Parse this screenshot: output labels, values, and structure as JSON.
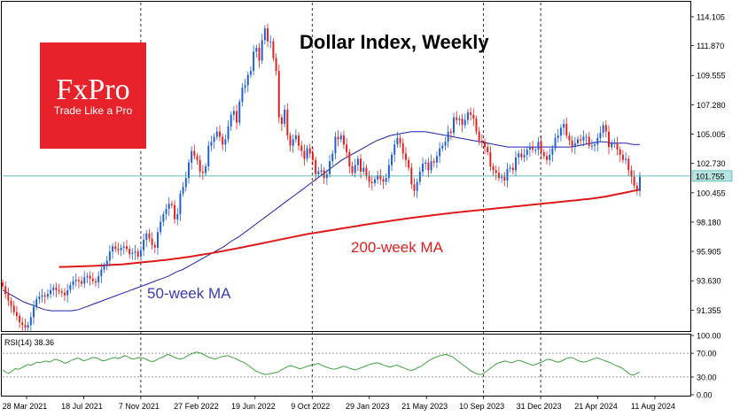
{
  "chart_data": {
    "type": "candlestick",
    "title": "Dollar Index, Weekly",
    "annotations": {
      "ma50": "50-week MA",
      "ma200": "200-week MA"
    },
    "logo": {
      "name": "FxPro",
      "tagline": "Trade Like a Pro"
    },
    "last_price_label": "101.755",
    "last_price": 101.755,
    "y_ticks": [
      "114.105",
      "111.870",
      "109.555",
      "107.280",
      "105.005",
      "102.730",
      "100.455",
      "98.180",
      "95.905",
      "93.630",
      "91.355"
    ],
    "ylim": [
      89.8,
      115.2
    ],
    "x_ticks": [
      "28 Mar 2021",
      "18 Jul 2021",
      "7 Nov 2021",
      "27 Feb 2022",
      "19 Jun 2022",
      "9 Oct 2022",
      "29 Jan 2023",
      "21 May 2023",
      "10 Sep 2023",
      "31 Dec 2023",
      "21 Apr 2024",
      "11 Aug 2024"
    ],
    "vertical_markers": [
      "7 Nov 2021",
      "9 Oct 2022",
      "10 Sep 2023",
      "31 Dec 2023"
    ],
    "close": [
      93.2,
      92.6,
      92.1,
      91.7,
      91.2,
      90.9,
      90.4,
      90.2,
      90.0,
      90.2,
      90.8,
      91.6,
      92.2,
      92.4,
      92.5,
      92.4,
      92.6,
      92.9,
      93.1,
      92.9,
      92.8,
      92.7,
      92.5,
      92.9,
      93.3,
      93.6,
      93.7,
      93.6,
      93.4,
      93.9,
      94.0,
      93.8,
      93.6,
      93.5,
      94.0,
      94.5,
      94.8,
      95.2,
      95.9,
      96.3,
      96.1,
      96.0,
      96.2,
      96.3,
      96.1,
      95.7,
      95.8,
      95.9,
      95.5,
      96.0,
      96.8,
      97.3,
      96.9,
      96.4,
      96.2,
      97.4,
      98.2,
      98.8,
      99.2,
      99.6,
      99.5,
      98.4,
      98.8,
      100.4,
      100.9,
      101.6,
      102.8,
      103.7,
      103.3,
      103.0,
      102.1,
      102.0,
      102.5,
      104.1,
      104.4,
      104.8,
      105.2,
      104.8,
      104.2,
      104.6,
      105.6,
      106.5,
      106.8,
      105.9,
      107.5,
      108.6,
      108.8,
      109.6,
      109.9,
      111.4,
      111.7,
      110.7,
      112.3,
      113.2,
      112.2,
      112.2,
      110.9,
      109.9,
      106.3,
      105.8,
      106.9,
      104.9,
      104.1,
      104.6,
      104.9,
      104.1,
      103.7,
      103.1,
      103.9,
      103.5,
      103.0,
      101.9,
      102.1,
      102.2,
      101.6,
      101.9,
      102.9,
      103.5,
      104.8,
      104.6,
      104.9,
      104.2,
      103.6,
      102.5,
      102.0,
      102.6,
      103.1,
      102.1,
      102.4,
      101.8,
      101.3,
      101.2,
      101.5,
      101.8,
      101.5,
      101.3,
      101.6,
      102.6,
      103.4,
      104.2,
      104.7,
      104.3,
      103.5,
      103.0,
      102.4,
      101.1,
      100.6,
      101.3,
      102.1,
      102.7,
      102.8,
      102.2,
      102.9,
      102.8,
      103.3,
      103.9,
      104.1,
      104.4,
      105.2,
      105.1,
      106.3,
      106.1,
      106.2,
      105.7,
      106.1,
      106.7,
      106.5,
      106.2,
      105.2,
      104.5,
      104.4,
      104.0,
      103.6,
      102.5,
      102.2,
      102.0,
      101.6,
      101.7,
      101.4,
      102.3,
      102.4,
      102.2,
      103.2,
      103.5,
      103.2,
      103.4,
      103.8,
      104.0,
      103.8,
      103.8,
      104.4,
      103.6,
      103.3,
      103.0,
      103.4,
      103.9,
      104.7,
      104.9,
      105.5,
      105.8,
      104.9,
      104.5,
      104.0,
      104.3,
      104.6,
      104.5,
      104.8,
      104.8,
      104.1,
      104.1,
      104.2,
      104.7,
      105.1,
      105.7,
      105.2,
      104.0,
      104.3,
      104.3,
      103.8,
      103.4,
      103.0,
      103.1,
      102.2,
      101.7,
      101.0,
      100.6,
      101.7
    ],
    "ma50": [
      92.9,
      92.6,
      92.3,
      92.0,
      91.8,
      91.6,
      91.4,
      91.3,
      91.3,
      91.3,
      91.3,
      91.4,
      91.6,
      91.8,
      92.0,
      92.2,
      92.4,
      92.6,
      92.8,
      93.0,
      93.2,
      93.4,
      93.6,
      93.8,
      94.0,
      94.3,
      94.5,
      94.8,
      95.1,
      95.4,
      95.7,
      96.0,
      96.3,
      96.7,
      97.0,
      97.4,
      97.8,
      98.2,
      98.6,
      99.0,
      99.4,
      99.8,
      100.2,
      100.6,
      101.0,
      101.4,
      101.8,
      102.2,
      102.6,
      103.0,
      103.3,
      103.6,
      103.9,
      104.2,
      104.5,
      104.7,
      104.9,
      105.0,
      105.1,
      105.2,
      105.2,
      105.2,
      105.1,
      105.0,
      104.9,
      104.8,
      104.7,
      104.6,
      104.5,
      104.4,
      104.3,
      104.2,
      104.1,
      104.0,
      104.0,
      104.0,
      104.0,
      104.0,
      104.0,
      104.0,
      104.0,
      104.0,
      104.0,
      104.1,
      104.2,
      104.3,
      104.4,
      104.4,
      104.3,
      104.3,
      104.3,
      104.2,
      104.2
    ],
    "ma200": [
      94.7,
      94.71,
      94.72,
      94.74,
      94.76,
      94.78,
      94.8,
      94.82,
      94.85,
      94.88,
      94.9,
      94.95,
      95.0,
      95.05,
      95.1,
      95.15,
      95.2,
      95.25,
      95.32,
      95.38,
      95.45,
      95.52,
      95.6,
      95.68,
      95.76,
      95.85,
      95.94,
      96.03,
      96.12,
      96.22,
      96.32,
      96.42,
      96.52,
      96.62,
      96.72,
      96.82,
      96.92,
      97.02,
      97.12,
      97.22,
      97.3,
      97.38,
      97.46,
      97.54,
      97.62,
      97.7,
      97.78,
      97.86,
      97.94,
      98.02,
      98.1,
      98.17,
      98.24,
      98.31,
      98.38,
      98.45,
      98.52,
      98.58,
      98.64,
      98.7,
      98.76,
      98.82,
      98.88,
      98.93,
      98.98,
      99.03,
      99.08,
      99.13,
      99.18,
      99.23,
      99.28,
      99.33,
      99.38,
      99.43,
      99.48,
      99.53,
      99.58,
      99.63,
      99.68,
      99.73,
      99.78,
      99.83,
      99.88,
      99.93,
      99.98,
      100.05,
      100.12,
      100.2,
      100.3,
      100.4,
      100.5,
      100.6,
      100.7
    ],
    "ma200_start_index": 20,
    "rsi": {
      "label": "RSI(14) 38.36",
      "levels_text": [
        "100.00",
        "70.00",
        "30.00",
        "0.00"
      ],
      "values": [
        42,
        38,
        36,
        40,
        44,
        43,
        45,
        48,
        51,
        50,
        52,
        55,
        54,
        56,
        57,
        55,
        58,
        60,
        58,
        56,
        53,
        55,
        58,
        60,
        62,
        60,
        57,
        59,
        61,
        63,
        62,
        60,
        57,
        58,
        60,
        62,
        63,
        61,
        63,
        66,
        64,
        61,
        60,
        62,
        63,
        62,
        60,
        57,
        56,
        58,
        61,
        63,
        66,
        68,
        66,
        63,
        61,
        60,
        62,
        65,
        68,
        70,
        72,
        71,
        69,
        66,
        63,
        62,
        60,
        62,
        64,
        65,
        66,
        64,
        62,
        60,
        57,
        55,
        52,
        48,
        44,
        40,
        38,
        36,
        34,
        35,
        36,
        37,
        38,
        41,
        44,
        47,
        49,
        48,
        46,
        44,
        45,
        47,
        49,
        50,
        51,
        53,
        50,
        48,
        46,
        44,
        43,
        44,
        46,
        48,
        47,
        45,
        43,
        42,
        44,
        46,
        48,
        50,
        52,
        53,
        54,
        52,
        50,
        48,
        47,
        48,
        50,
        48,
        46,
        44,
        42,
        41,
        43,
        46,
        48,
        52,
        56,
        59,
        62,
        64,
        66,
        67,
        68,
        66,
        64,
        60,
        56,
        52,
        48,
        44,
        40,
        37,
        35,
        34,
        36,
        40,
        44,
        48,
        52,
        54,
        56,
        57,
        55,
        54,
        56,
        58,
        57,
        55,
        53,
        51,
        50,
        52,
        54,
        56,
        59,
        60,
        58,
        56,
        55,
        57,
        60,
        62,
        63,
        61,
        58,
        56,
        55,
        56,
        58,
        60,
        62,
        61,
        59,
        57,
        55,
        53,
        50,
        48,
        46,
        42,
        38,
        34,
        33,
        36,
        38
      ]
    }
  }
}
